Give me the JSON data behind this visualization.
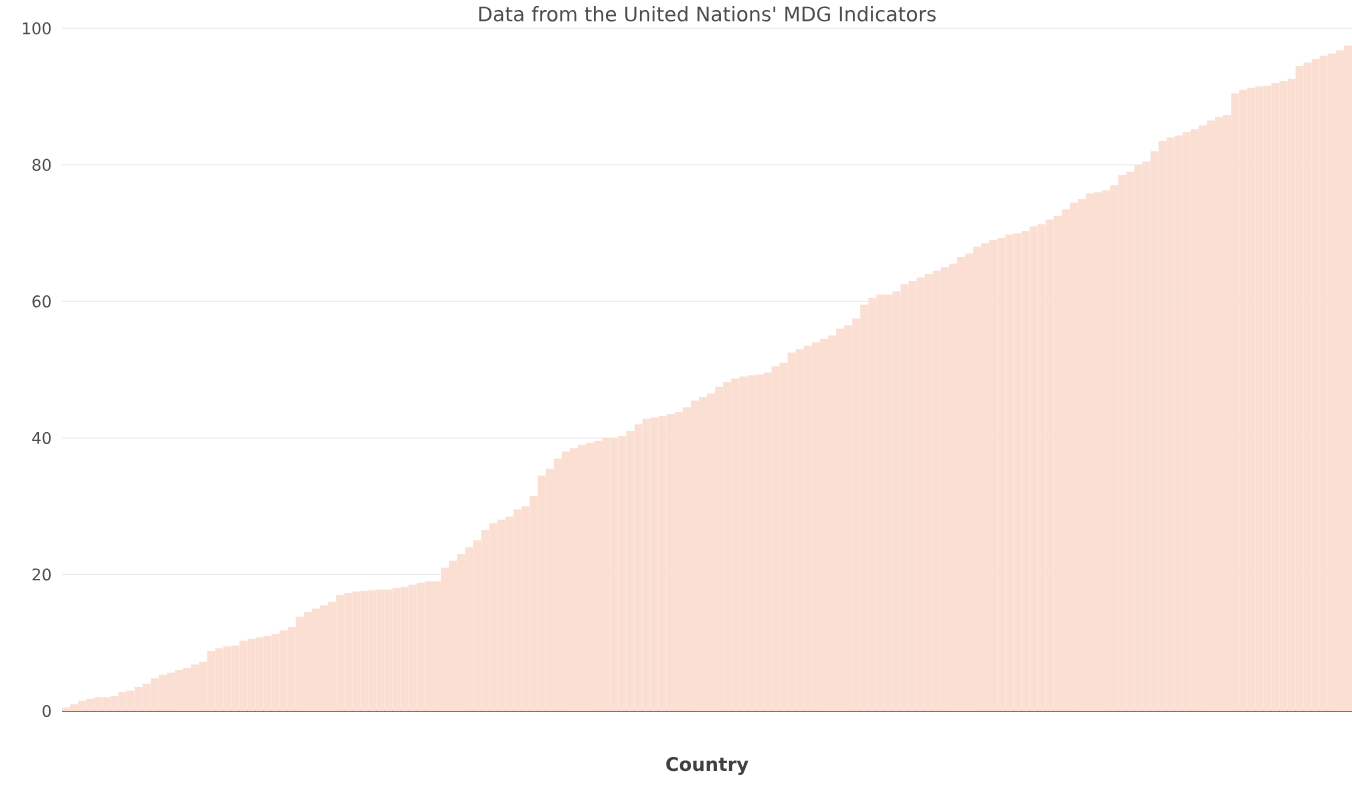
{
  "chart_data": {
    "type": "bar",
    "title": "Data from the United Nations' MDG Indicators",
    "xlabel": "Country",
    "categories": [
      null,
      null,
      null,
      null,
      null,
      null,
      null,
      null,
      null,
      null,
      null,
      null,
      null,
      null,
      null,
      null,
      null,
      null,
      null,
      null,
      null,
      null,
      null,
      null,
      null,
      null,
      null,
      null,
      null,
      null,
      null,
      null,
      null,
      null,
      null,
      null,
      null,
      null,
      null,
      null,
      null,
      null,
      null,
      null,
      null,
      null,
      null,
      null,
      null,
      null,
      null,
      null,
      null,
      null,
      null,
      null,
      null,
      null,
      null,
      null,
      null,
      null,
      null,
      null,
      null,
      null,
      null,
      null,
      null,
      null,
      null,
      null,
      null,
      null,
      null,
      null,
      null,
      null,
      null,
      null,
      null,
      null,
      null,
      null,
      null,
      null,
      null,
      null,
      null,
      null,
      null,
      null,
      null,
      null,
      null,
      null,
      null,
      null,
      null,
      null,
      null,
      null,
      null,
      null,
      null,
      null,
      null,
      null,
      null,
      null,
      null,
      null,
      null,
      null,
      null,
      null,
      null,
      null,
      null,
      null,
      null,
      null,
      null,
      null,
      null,
      null,
      null,
      null,
      null,
      null,
      null,
      null,
      null,
      null,
      null,
      null,
      null,
      null,
      null,
      null,
      null,
      null,
      null,
      null,
      null,
      null,
      null,
      null,
      null,
      null,
      null,
      null,
      null,
      null,
      null,
      null,
      null,
      null,
      null,
      null
    ],
    "values": [
      0.5,
      1,
      1.5,
      1.8,
      2,
      2,
      2.2,
      2.8,
      3,
      3.5,
      4,
      4.8,
      5.3,
      5.6,
      6,
      6.3,
      6.8,
      7.2,
      8.8,
      9.2,
      9.5,
      9.6,
      10.3,
      10.6,
      10.8,
      11,
      11.3,
      11.8,
      12.3,
      13.8,
      14.5,
      15,
      15.5,
      16,
      17,
      17.3,
      17.5,
      17.6,
      17.7,
      17.8,
      17.8,
      18,
      18.2,
      18.5,
      18.8,
      19,
      19,
      21,
      22,
      23,
      24,
      25,
      26.5,
      27.5,
      28,
      28.5,
      29.5,
      30,
      31.5,
      34.5,
      35.5,
      37,
      38,
      38.5,
      39,
      39.3,
      39.6,
      40,
      40,
      40.3,
      41,
      42,
      42.8,
      43,
      43.2,
      43.5,
      43.8,
      44.5,
      45.5,
      46,
      46.5,
      47.5,
      48.2,
      48.7,
      49,
      49.2,
      49.3,
      49.6,
      50.5,
      51,
      52.5,
      53,
      53.5,
      54,
      54.5,
      55,
      56,
      56.5,
      57.5,
      59.5,
      60.5,
      61,
      61,
      61.5,
      62.5,
      63,
      63.5,
      64,
      64.5,
      65,
      65.5,
      66.5,
      67,
      68,
      68.5,
      69,
      69.3,
      69.8,
      70,
      70.3,
      71,
      71.3,
      72,
      72.5,
      73.5,
      74.5,
      75,
      75.8,
      76,
      76.3,
      77,
      78.5,
      79,
      80,
      80.5,
      82,
      83.5,
      84,
      84.3,
      84.8,
      85.2,
      85.8,
      86.5,
      87,
      87.3,
      90.5,
      91,
      91.3,
      91.5,
      91.6,
      92,
      92.3,
      92.6,
      94.5,
      95,
      95.5,
      96,
      96.3,
      96.8,
      97.5
    ],
    "color": "#fbdfd3",
    "ylim": [
      0,
      100
    ],
    "yticks": [
      0,
      20,
      40,
      60,
      80,
      100
    ],
    "grid": "y"
  }
}
